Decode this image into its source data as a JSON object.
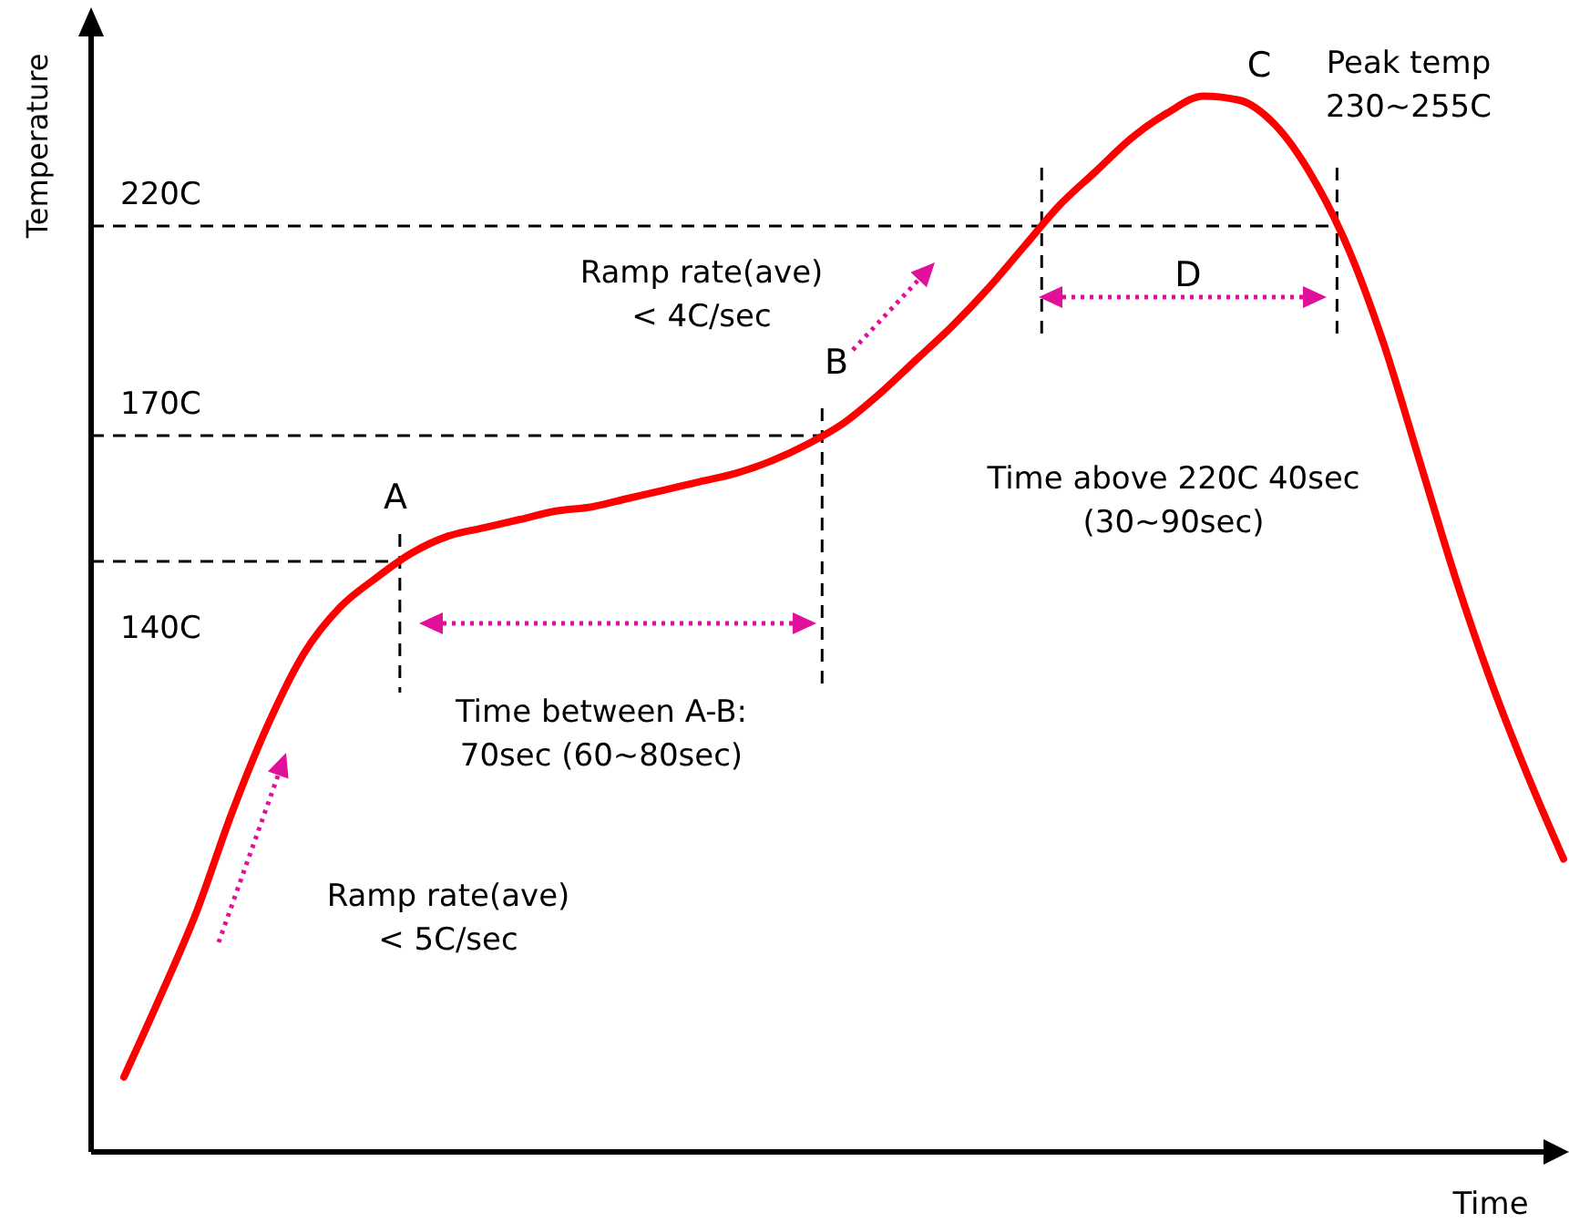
{
  "chart_data": {
    "type": "line",
    "xlabel": "Time",
    "ylabel": "Temperature",
    "categories": [
      null,
      null,
      null,
      null,
      null,
      null,
      null,
      null,
      null,
      null,
      null,
      null,
      null,
      null,
      null,
      null,
      null,
      null,
      null,
      null,
      null,
      null,
      null,
      null,
      null,
      null,
      null,
      null,
      null,
      null,
      null,
      null,
      null,
      null,
      null,
      null,
      null,
      null,
      null,
      null,
      null
    ],
    "series": [
      {
        "color": "#ff0000",
        "values": [
          17,
          36,
          56,
          80,
          101,
          118,
          129,
          136,
          142,
          146,
          148,
          150,
          152,
          153,
          155,
          157,
          159,
          161,
          164,
          168,
          173,
          180,
          188,
          196,
          205,
          215,
          225,
          233,
          241,
          247,
          251,
          250,
          244,
          232,
          215,
          192,
          164,
          136,
          111,
          89,
          69
        ]
      }
    ],
    "ylim": [
      0,
      270
    ],
    "marker": "none",
    "line_style": "solid",
    "ref_lines": [
      {
        "axis": "y",
        "value": 140,
        "label": "140C",
        "line_style": "dashed",
        "color": "#000000"
      },
      {
        "axis": "y",
        "value": 170,
        "label": "170C",
        "line_style": "dashed",
        "color": "#000000"
      },
      {
        "axis": "y",
        "value": 220,
        "label": "220C",
        "line_style": "dashed",
        "color": "#000000"
      }
    ],
    "annotations": [
      "A",
      "B",
      "C",
      "D",
      "Ramp rate(ave)\n< 5C/sec",
      "Time between A-B:\n70sec (60~80sec)",
      "Ramp rate(ave)\n< 4C/sec",
      "Time above 220C 40sec\n(30~90sec)",
      "Peak temp\n230~255C"
    ]
  }
}
